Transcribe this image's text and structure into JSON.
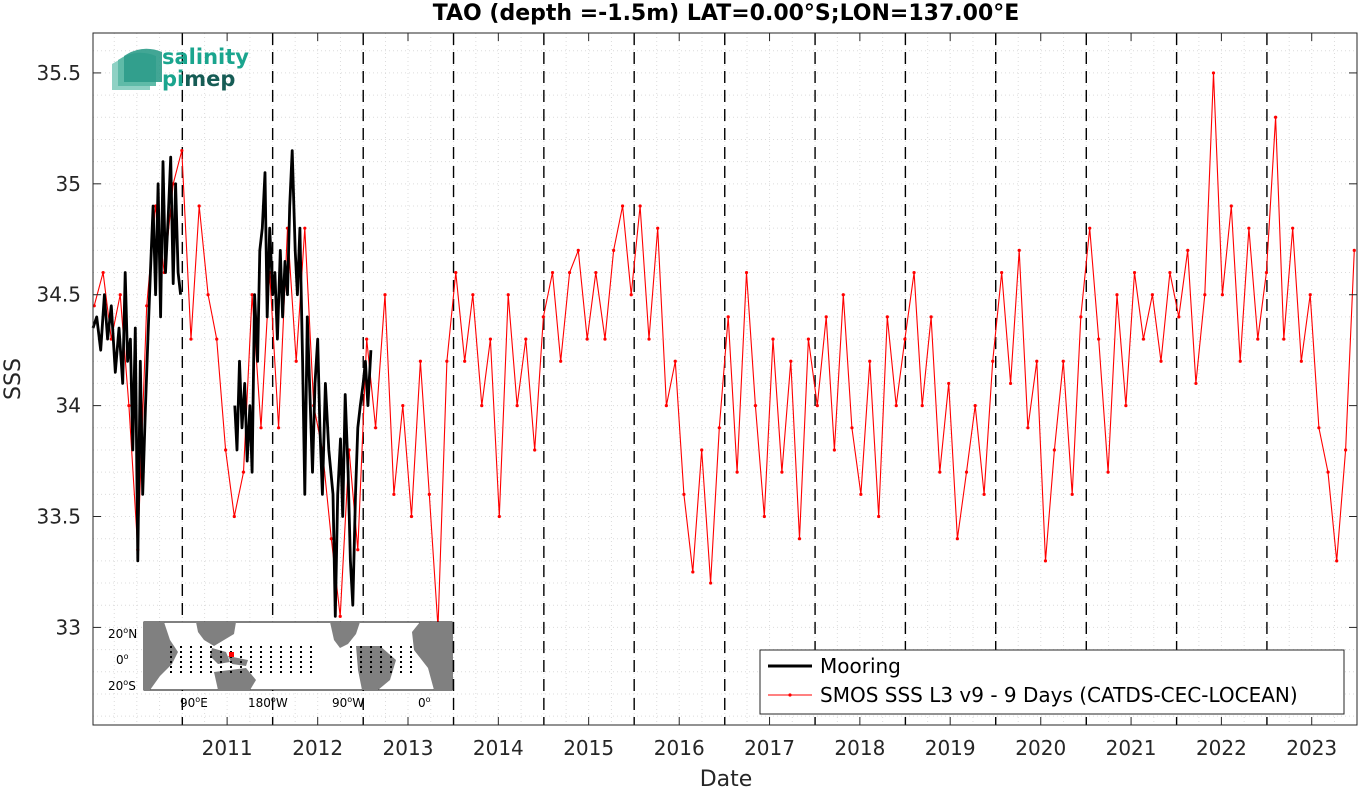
{
  "chart_data": {
    "type": "line",
    "title": "TAO (depth =-1.5m) LAT=0.00°S;LON=137.00°E",
    "xlabel": "Date",
    "ylabel": "SSS",
    "xlim": [
      "2010-01-05",
      "2023-12-31"
    ],
    "ylim": [
      32.56,
      35.68
    ],
    "y_ticks": [
      "33",
      "33.5",
      "34",
      "34.5",
      "35",
      "35.5"
    ],
    "x_ticks": [
      "2011",
      "2012",
      "2013",
      "2014",
      "2015",
      "2016",
      "2017",
      "2018",
      "2019",
      "2020",
      "2021",
      "2022",
      "2023"
    ],
    "year_boundaries": [
      "2011-01-01",
      "2012-01-01",
      "2013-01-01",
      "2014-01-01",
      "2015-01-01",
      "2016-01-01",
      "2017-01-01",
      "2018-01-01",
      "2019-01-01",
      "2020-01-01",
      "2021-01-01",
      "2022-01-01",
      "2023-01-01"
    ],
    "grid": true,
    "legend_placement": "bottom-right",
    "colors": {
      "mooring": "#000000",
      "smos": "#ff0000",
      "boundary": "#000000",
      "grid": "#dcdcdc"
    },
    "series": [
      {
        "name": "Mooring",
        "style": "thick-line",
        "points": [
          [
            "2010-01-05",
            34.35
          ],
          [
            "2010-01-20",
            34.4
          ],
          [
            "2010-02-05",
            34.25
          ],
          [
            "2010-02-20",
            34.5
          ],
          [
            "2010-03-05",
            34.3
          ],
          [
            "2010-03-20",
            34.45
          ],
          [
            "2010-04-05",
            34.15
          ],
          [
            "2010-04-20",
            34.35
          ],
          [
            "2010-05-05",
            34.1
          ],
          [
            "2010-05-15",
            34.6
          ],
          [
            "2010-05-25",
            34.2
          ],
          [
            "2010-06-05",
            34.3
          ],
          [
            "2010-06-15",
            33.8
          ],
          [
            "2010-06-25",
            34.35
          ],
          [
            "2010-07-05",
            33.3
          ],
          [
            "2010-07-15",
            34.2
          ],
          [
            "2010-07-25",
            33.6
          ],
          [
            "2010-08-05",
            34.0
          ],
          [
            "2010-08-15",
            34.3
          ],
          [
            "2010-08-25",
            34.6
          ],
          [
            "2010-09-05",
            34.9
          ],
          [
            "2010-09-15",
            34.5
          ],
          [
            "2010-09-25",
            35.0
          ],
          [
            "2010-10-05",
            34.4
          ],
          [
            "2010-10-15",
            35.1
          ],
          [
            "2010-10-25",
            34.6
          ],
          [
            "2010-11-05",
            34.85
          ],
          [
            "2010-11-15",
            35.12
          ],
          [
            "2010-11-25",
            34.55
          ],
          [
            "2010-12-05",
            35.0
          ],
          [
            "2010-12-15",
            34.6
          ],
          [
            "2010-12-25",
            34.5
          ],
          [
            "2011-08-01",
            34.0
          ],
          [
            "2011-08-10",
            33.8
          ],
          [
            "2011-08-20",
            34.2
          ],
          [
            "2011-08-30",
            33.9
          ],
          [
            "2011-09-10",
            34.1
          ],
          [
            "2011-09-20",
            33.75
          ],
          [
            "2011-10-01",
            34.0
          ],
          [
            "2011-10-10",
            33.7
          ],
          [
            "2011-10-20",
            34.5
          ],
          [
            "2011-11-01",
            34.2
          ],
          [
            "2011-11-10",
            34.7
          ],
          [
            "2011-11-20",
            34.8
          ],
          [
            "2011-12-01",
            35.05
          ],
          [
            "2011-12-10",
            34.4
          ],
          [
            "2011-12-20",
            34.8
          ],
          [
            "2012-01-01",
            34.5
          ],
          [
            "2012-01-10",
            34.6
          ],
          [
            "2012-01-20",
            34.3
          ],
          [
            "2012-02-01",
            34.7
          ],
          [
            "2012-02-10",
            34.4
          ],
          [
            "2012-02-20",
            34.65
          ],
          [
            "2012-03-01",
            34.5
          ],
          [
            "2012-03-10",
            34.9
          ],
          [
            "2012-03-20",
            35.15
          ],
          [
            "2012-04-01",
            34.7
          ],
          [
            "2012-04-10",
            34.5
          ],
          [
            "2012-04-20",
            34.8
          ],
          [
            "2012-05-01",
            34.2
          ],
          [
            "2012-05-10",
            33.6
          ],
          [
            "2012-05-20",
            34.4
          ],
          [
            "2012-06-01",
            34.0
          ],
          [
            "2012-06-10",
            33.7
          ],
          [
            "2012-06-20",
            34.1
          ],
          [
            "2012-07-01",
            34.3
          ],
          [
            "2012-07-10",
            33.9
          ],
          [
            "2012-07-20",
            33.6
          ],
          [
            "2012-08-01",
            34.1
          ],
          [
            "2012-08-15",
            33.8
          ],
          [
            "2012-09-01",
            33.6
          ],
          [
            "2012-09-10",
            33.05
          ],
          [
            "2012-09-20",
            33.6
          ],
          [
            "2012-10-01",
            33.85
          ],
          [
            "2012-10-10",
            33.5
          ],
          [
            "2012-10-20",
            34.05
          ],
          [
            "2012-11-01",
            33.7
          ],
          [
            "2012-11-10",
            33.3
          ],
          [
            "2012-11-20",
            33.1
          ],
          [
            "2012-12-01",
            33.6
          ],
          [
            "2012-12-10",
            33.9
          ],
          [
            "2012-12-20",
            34.0
          ],
          [
            "2013-01-01",
            34.1
          ],
          [
            "2013-01-10",
            34.2
          ],
          [
            "2013-01-20",
            34.0
          ],
          [
            "2013-02-01",
            34.25
          ]
        ]
      },
      {
        "name": "SMOS SSS L3 v9 - 9 Days (CATDS-CEC-LOCEAN)",
        "style": "thin-line-dots",
        "points": [
          [
            "2010-01-10",
            34.45
          ],
          [
            "2010-02-15",
            34.6
          ],
          [
            "2010-03-20",
            34.3
          ],
          [
            "2010-04-25",
            34.5
          ],
          [
            "2010-05-30",
            34.0
          ],
          [
            "2010-07-05",
            33.35
          ],
          [
            "2010-08-10",
            34.45
          ],
          [
            "2010-09-15",
            34.9
          ],
          [
            "2010-10-20",
            34.6
          ],
          [
            "2010-11-25",
            35.0
          ],
          [
            "2010-12-30",
            35.15
          ],
          [
            "2011-02-05",
            34.3
          ],
          [
            "2011-03-10",
            34.9
          ],
          [
            "2011-04-15",
            34.5
          ],
          [
            "2011-05-20",
            34.3
          ],
          [
            "2011-06-25",
            33.8
          ],
          [
            "2011-07-30",
            33.5
          ],
          [
            "2011-09-05",
            33.7
          ],
          [
            "2011-10-10",
            34.5
          ],
          [
            "2011-11-15",
            33.9
          ],
          [
            "2011-12-20",
            34.6
          ],
          [
            "2012-01-25",
            33.9
          ],
          [
            "2012-03-01",
            34.8
          ],
          [
            "2012-04-05",
            34.2
          ],
          [
            "2012-05-10",
            34.8
          ],
          [
            "2012-06-15",
            34.0
          ],
          [
            "2012-07-20",
            33.8
          ],
          [
            "2012-08-25",
            33.4
          ],
          [
            "2012-09-30",
            33.05
          ],
          [
            "2012-11-05",
            33.8
          ],
          [
            "2012-12-10",
            33.35
          ],
          [
            "2013-01-15",
            34.3
          ],
          [
            "2013-02-20",
            33.9
          ],
          [
            "2013-03-30",
            34.5
          ],
          [
            "2013-05-05",
            33.6
          ],
          [
            "2013-06-10",
            34.0
          ],
          [
            "2013-07-15",
            33.5
          ],
          [
            "2013-08-20",
            34.2
          ],
          [
            "2013-09-25",
            33.6
          ],
          [
            "2013-10-30",
            33.0
          ],
          [
            "2013-12-05",
            34.2
          ],
          [
            "2014-01-10",
            34.6
          ],
          [
            "2014-02-15",
            34.2
          ],
          [
            "2014-03-20",
            34.5
          ],
          [
            "2014-04-25",
            34.0
          ],
          [
            "2014-05-30",
            34.3
          ],
          [
            "2014-07-05",
            33.5
          ],
          [
            "2014-08-10",
            34.5
          ],
          [
            "2014-09-15",
            34.0
          ],
          [
            "2014-10-20",
            34.3
          ],
          [
            "2014-11-25",
            33.8
          ],
          [
            "2014-12-30",
            34.4
          ],
          [
            "2015-02-05",
            34.6
          ],
          [
            "2015-03-10",
            34.2
          ],
          [
            "2015-04-15",
            34.6
          ],
          [
            "2015-05-20",
            34.7
          ],
          [
            "2015-06-25",
            34.3
          ],
          [
            "2015-07-30",
            34.6
          ],
          [
            "2015-09-05",
            34.3
          ],
          [
            "2015-10-10",
            34.7
          ],
          [
            "2015-11-15",
            34.9
          ],
          [
            "2015-12-20",
            34.5
          ],
          [
            "2016-01-25",
            34.9
          ],
          [
            "2016-03-01",
            34.3
          ],
          [
            "2016-04-05",
            34.8
          ],
          [
            "2016-05-10",
            34.0
          ],
          [
            "2016-06-15",
            34.2
          ],
          [
            "2016-07-20",
            33.6
          ],
          [
            "2016-08-25",
            33.25
          ],
          [
            "2016-09-30",
            33.8
          ],
          [
            "2016-11-05",
            33.2
          ],
          [
            "2016-12-10",
            33.9
          ],
          [
            "2017-01-15",
            34.4
          ],
          [
            "2017-02-20",
            33.7
          ],
          [
            "2017-03-30",
            34.6
          ],
          [
            "2017-05-05",
            34.0
          ],
          [
            "2017-06-10",
            33.5
          ],
          [
            "2017-07-15",
            34.3
          ],
          [
            "2017-08-20",
            33.7
          ],
          [
            "2017-09-25",
            34.2
          ],
          [
            "2017-10-30",
            33.4
          ],
          [
            "2017-12-05",
            34.3
          ],
          [
            "2018-01-10",
            34.0
          ],
          [
            "2018-02-15",
            34.4
          ],
          [
            "2018-03-20",
            33.8
          ],
          [
            "2018-04-25",
            34.5
          ],
          [
            "2018-05-30",
            33.9
          ],
          [
            "2018-07-05",
            33.6
          ],
          [
            "2018-08-10",
            34.2
          ],
          [
            "2018-09-15",
            33.5
          ],
          [
            "2018-10-20",
            34.4
          ],
          [
            "2018-11-25",
            34.0
          ],
          [
            "2018-12-30",
            34.3
          ],
          [
            "2019-02-05",
            34.6
          ],
          [
            "2019-03-10",
            34.0
          ],
          [
            "2019-04-15",
            34.4
          ],
          [
            "2019-05-20",
            33.7
          ],
          [
            "2019-06-25",
            34.1
          ],
          [
            "2019-07-30",
            33.4
          ],
          [
            "2019-09-05",
            33.7
          ],
          [
            "2019-10-10",
            34.0
          ],
          [
            "2019-11-15",
            33.6
          ],
          [
            "2019-12-20",
            34.2
          ],
          [
            "2020-01-25",
            34.6
          ],
          [
            "2020-03-01",
            34.1
          ],
          [
            "2020-04-05",
            34.7
          ],
          [
            "2020-05-10",
            33.9
          ],
          [
            "2020-06-15",
            34.2
          ],
          [
            "2020-07-20",
            33.3
          ],
          [
            "2020-08-25",
            33.8
          ],
          [
            "2020-09-30",
            34.2
          ],
          [
            "2020-11-05",
            33.6
          ],
          [
            "2020-12-10",
            34.4
          ],
          [
            "2021-01-15",
            34.8
          ],
          [
            "2021-02-20",
            34.3
          ],
          [
            "2021-03-30",
            33.7
          ],
          [
            "2021-05-05",
            34.5
          ],
          [
            "2021-06-10",
            34.0
          ],
          [
            "2021-07-15",
            34.6
          ],
          [
            "2021-08-20",
            34.3
          ],
          [
            "2021-09-25",
            34.5
          ],
          [
            "2021-10-30",
            34.2
          ],
          [
            "2021-12-05",
            34.6
          ],
          [
            "2022-01-10",
            34.4
          ],
          [
            "2022-02-15",
            34.7
          ],
          [
            "2022-03-20",
            34.1
          ],
          [
            "2022-04-25",
            34.5
          ],
          [
            "2022-05-30",
            35.5
          ],
          [
            "2022-07-05",
            34.5
          ],
          [
            "2022-08-10",
            34.9
          ],
          [
            "2022-09-15",
            34.2
          ],
          [
            "2022-10-20",
            34.8
          ],
          [
            "2022-11-25",
            34.3
          ],
          [
            "2022-12-30",
            34.6
          ],
          [
            "2023-02-05",
            35.3
          ],
          [
            "2023-03-10",
            34.3
          ],
          [
            "2023-04-15",
            34.8
          ],
          [
            "2023-05-20",
            34.2
          ],
          [
            "2023-06-25",
            34.5
          ],
          [
            "2023-07-30",
            33.9
          ],
          [
            "2023-09-05",
            33.7
          ],
          [
            "2023-10-10",
            33.3
          ],
          [
            "2023-11-15",
            33.8
          ],
          [
            "2023-12-20",
            34.7
          ]
        ]
      }
    ]
  },
  "logo": {
    "line1": "salinity",
    "line2_a": "pi",
    "line2_b": "mep"
  },
  "inset_map": {
    "lat_labels": [
      {
        "value": "20",
        "sup": "o",
        "hemisphere": "N"
      },
      {
        "value": "0",
        "sup": "o",
        "hemisphere": ""
      },
      {
        "value": "20",
        "sup": "o",
        "hemisphere": "S"
      }
    ],
    "lon_labels": [
      {
        "value": "90",
        "sup": "o",
        "hemisphere": "E"
      },
      {
        "value": "180",
        "sup": "o",
        "hemisphere": "W"
      },
      {
        "value": "90",
        "sup": "o",
        "hemisphere": "W"
      },
      {
        "value": "0",
        "sup": "o",
        "hemisphere": ""
      }
    ],
    "colors": {
      "land": "#808080",
      "ocean": "#ffffff",
      "buoy": "#000000",
      "selected": "#ff0000"
    }
  }
}
